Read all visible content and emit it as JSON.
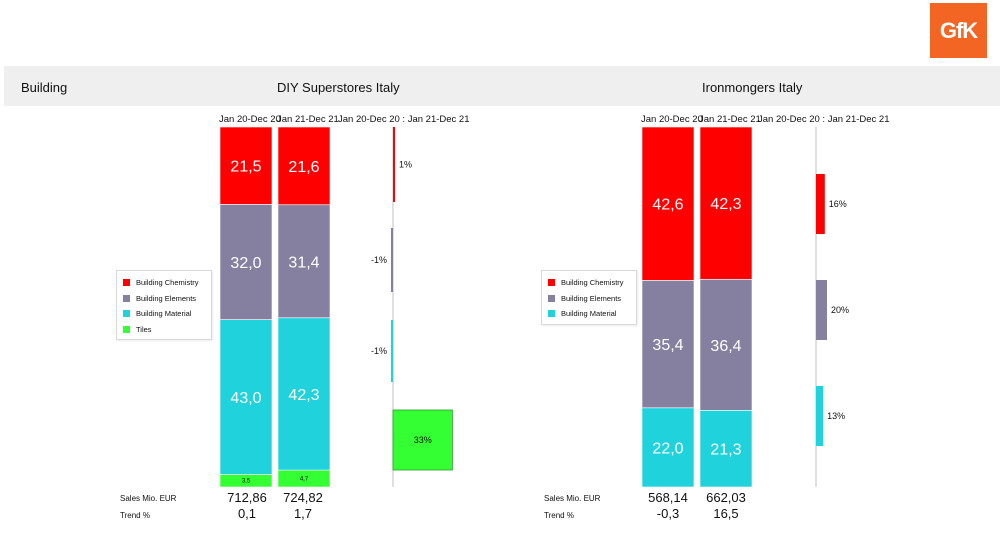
{
  "logo_text": "GfK",
  "header": {
    "category": "Building",
    "panel_titles": [
      "DIY Superstores Italy",
      "Ironmongers Italy"
    ]
  },
  "colors": {
    "Building Chemistry": "#ff0000",
    "Building Elements": "#85809f",
    "Building Material": "#1fd2dc",
    "Tiles": "#33ff33",
    "header_bg": "#efefef",
    "logo_bg": "#f26522"
  },
  "chart_data": [
    {
      "type": "bar",
      "stacked": true,
      "percent_stacked": true,
      "title": "DIY Superstores Italy",
      "categories": [
        "Jan 20-Dec 20",
        "Jan 21-Dec 21"
      ],
      "series": [
        {
          "name": "Tiles",
          "values": [
            3.5,
            4.7
          ],
          "labels": [
            "3,5",
            "4,7"
          ]
        },
        {
          "name": "Building Material",
          "values": [
            43.0,
            42.3
          ],
          "labels": [
            "43,0",
            "42,3"
          ]
        },
        {
          "name": "Building Elements",
          "values": [
            32.0,
            31.4
          ],
          "labels": [
            "32,0",
            "31,4"
          ]
        },
        {
          "name": "Building Chemistry",
          "values": [
            21.5,
            21.6
          ],
          "labels": [
            "21,5",
            "21,6"
          ]
        }
      ],
      "change_title": "Jan 20-Dec 20 : Jan 21-Dec 21",
      "changes": [
        {
          "name": "Building Chemistry",
          "value": 1,
          "label": "1%"
        },
        {
          "name": "Building Elements",
          "value": -1,
          "label": "-1%"
        },
        {
          "name": "Building Material",
          "value": -1,
          "label": "-1%"
        },
        {
          "name": "Tiles",
          "value": 33,
          "label": "33%"
        }
      ],
      "legend": [
        "Building Chemistry",
        "Building Elements",
        "Building Material",
        "Tiles"
      ],
      "legend_position": "left",
      "footer": {
        "sales_label": "Sales Mio. EUR",
        "sales": [
          "712,86",
          "724,82"
        ],
        "trend_label": "Trend %",
        "trend": [
          "0,1",
          "1,7"
        ]
      }
    },
    {
      "type": "bar",
      "stacked": true,
      "percent_stacked": true,
      "title": "Ironmongers Italy",
      "categories": [
        "Jan 20-Dec 20",
        "Jan 21-Dec 21"
      ],
      "series": [
        {
          "name": "Building Material",
          "values": [
            22.0,
            21.3
          ],
          "labels": [
            "22,0",
            "21,3"
          ]
        },
        {
          "name": "Building Elements",
          "values": [
            35.4,
            36.4
          ],
          "labels": [
            "35,4",
            "36,4"
          ]
        },
        {
          "name": "Building Chemistry",
          "values": [
            42.6,
            42.3
          ],
          "labels": [
            "42,6",
            "42,3"
          ]
        }
      ],
      "change_title": "Jan 20-Dec 20 : Jan 21-Dec 21",
      "changes": [
        {
          "name": "Building Chemistry",
          "value": 16,
          "label": "16%"
        },
        {
          "name": "Building Elements",
          "value": 20,
          "label": "20%"
        },
        {
          "name": "Building Material",
          "value": 13,
          "label": "13%"
        }
      ],
      "legend": [
        "Building Chemistry",
        "Building Elements",
        "Building Material"
      ],
      "legend_position": "left",
      "footer": {
        "sales_label": "Sales Mio. EUR",
        "sales": [
          "568,14",
          "662,03"
        ],
        "trend_label": "Trend %",
        "trend": [
          "-0,3",
          "16,5"
        ]
      }
    }
  ]
}
